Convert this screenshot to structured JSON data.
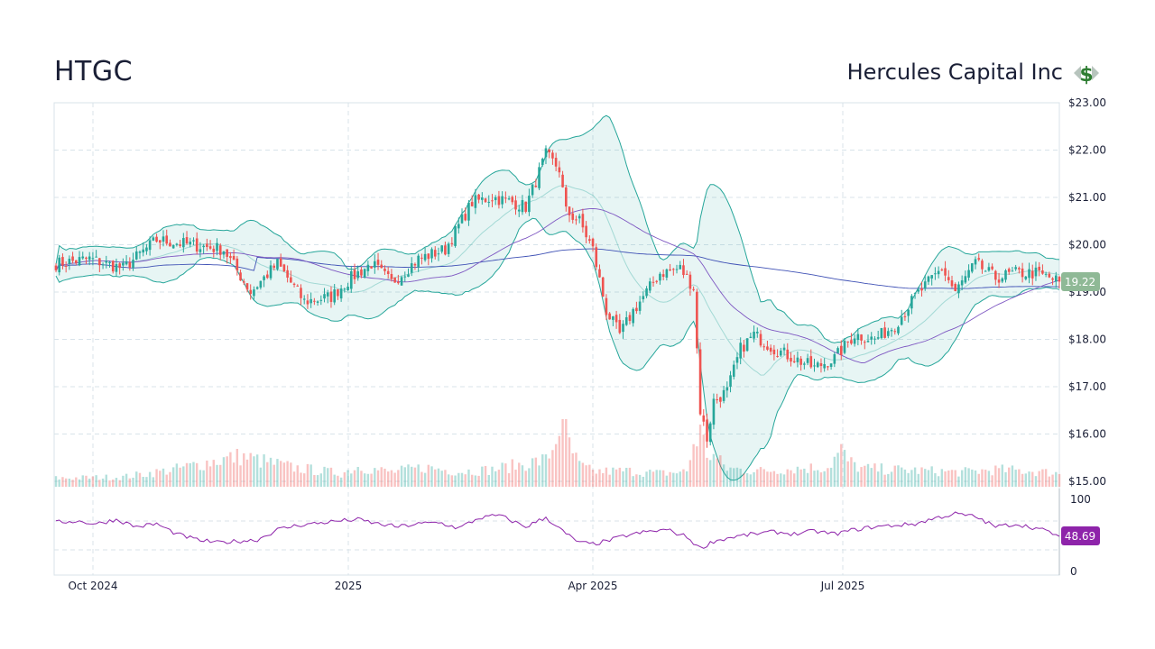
{
  "header": {
    "ticker": "HTGC",
    "company": "Hercules Capital Inc",
    "icon": "dollar-sign-icon"
  },
  "colors": {
    "up": "#26a69a",
    "down": "#ef5350",
    "bb": "#26a69a",
    "bbFill": "rgba(38,166,154,0.11)",
    "ma50": "#7e57c2",
    "ma200": "#3f51b5",
    "rsi": "#8e24aa",
    "grid": "#d8e3ea",
    "priceBadge": "#8fb996",
    "rsiBadge": "#8e24aa"
  },
  "chart_data": {
    "type": "candlestick",
    "price_axis": {
      "ticks": [
        "$23.00",
        "$22.00",
        "$21.00",
        "$20.00",
        "$19.00",
        "$18.00",
        "$17.00",
        "$16.00",
        "$15.00"
      ],
      "ylim": [
        15,
        23
      ]
    },
    "rsi_axis": {
      "ticks": [
        "100",
        "0"
      ],
      "ylim": [
        0,
        100
      ]
    },
    "x_ticks": [
      "Oct 2024",
      "2025",
      "Apr 2025",
      "Jul 2025"
    ],
    "last_price": "19.22",
    "last_rsi": "48.69",
    "price_path": [
      [
        0,
        19.6
      ],
      [
        10,
        19.7
      ],
      [
        20,
        19.5
      ],
      [
        30,
        20.1
      ],
      [
        40,
        20.0
      ],
      [
        50,
        19.9
      ],
      [
        58,
        19.0
      ],
      [
        66,
        19.6
      ],
      [
        74,
        18.8
      ],
      [
        82,
        18.9
      ],
      [
        88,
        19.3
      ],
      [
        94,
        19.6
      ],
      [
        100,
        19.2
      ],
      [
        108,
        19.7
      ],
      [
        116,
        19.9
      ],
      [
        124,
        20.9
      ],
      [
        130,
        21.0
      ],
      [
        136,
        20.9
      ],
      [
        140,
        20.8
      ],
      [
        146,
        21.9
      ],
      [
        150,
        21.6
      ],
      [
        152,
        20.7
      ],
      [
        156,
        20.5
      ],
      [
        160,
        19.9
      ],
      [
        164,
        18.6
      ],
      [
        168,
        18.1
      ],
      [
        172,
        18.6
      ],
      [
        176,
        19.0
      ],
      [
        180,
        19.4
      ],
      [
        186,
        19.5
      ],
      [
        190,
        19.1
      ],
      [
        192,
        16.5
      ],
      [
        194,
        15.9
      ],
      [
        196,
        16.7
      ],
      [
        200,
        16.9
      ],
      [
        204,
        17.8
      ],
      [
        208,
        18.1
      ],
      [
        214,
        17.8
      ],
      [
        220,
        17.6
      ],
      [
        226,
        17.4
      ],
      [
        232,
        17.6
      ],
      [
        238,
        18.1
      ],
      [
        244,
        18.0
      ],
      [
        250,
        18.3
      ],
      [
        256,
        18.9
      ],
      [
        260,
        19.2
      ],
      [
        264,
        19.5
      ],
      [
        268,
        19.0
      ],
      [
        274,
        19.6
      ],
      [
        280,
        19.3
      ],
      [
        286,
        19.4
      ],
      [
        292,
        19.4
      ],
      [
        296,
        19.3
      ],
      [
        299,
        19.22
      ]
    ],
    "rsi_path": [
      [
        0,
        68
      ],
      [
        6,
        70
      ],
      [
        12,
        66
      ],
      [
        18,
        72
      ],
      [
        24,
        62
      ],
      [
        30,
        66
      ],
      [
        36,
        52
      ],
      [
        42,
        44
      ],
      [
        48,
        40
      ],
      [
        54,
        42
      ],
      [
        60,
        44
      ],
      [
        66,
        58
      ],
      [
        72,
        64
      ],
      [
        78,
        67
      ],
      [
        84,
        70
      ],
      [
        90,
        72
      ],
      [
        96,
        66
      ],
      [
        102,
        62
      ],
      [
        108,
        66
      ],
      [
        114,
        68
      ],
      [
        120,
        60
      ],
      [
        126,
        74
      ],
      [
        132,
        78
      ],
      [
        136,
        70
      ],
      [
        140,
        62
      ],
      [
        146,
        75
      ],
      [
        152,
        52
      ],
      [
        156,
        40
      ],
      [
        160,
        38
      ],
      [
        164,
        42
      ],
      [
        170,
        50
      ],
      [
        176,
        55
      ],
      [
        182,
        58
      ],
      [
        188,
        48
      ],
      [
        192,
        32
      ],
      [
        196,
        42
      ],
      [
        202,
        48
      ],
      [
        208,
        52
      ],
      [
        214,
        55
      ],
      [
        220,
        52
      ],
      [
        226,
        56
      ],
      [
        232,
        52
      ],
      [
        238,
        58
      ],
      [
        244,
        62
      ],
      [
        250,
        64
      ],
      [
        256,
        66
      ],
      [
        262,
        74
      ],
      [
        268,
        80
      ],
      [
        274,
        76
      ],
      [
        280,
        62
      ],
      [
        286,
        66
      ],
      [
        292,
        60
      ],
      [
        296,
        55
      ],
      [
        299,
        48.69
      ]
    ],
    "volume_profile": [
      [
        0,
        0.14
      ],
      [
        20,
        0.16
      ],
      [
        35,
        0.28
      ],
      [
        45,
        0.4
      ],
      [
        55,
        0.5
      ],
      [
        70,
        0.32
      ],
      [
        85,
        0.22
      ],
      [
        90,
        0.33
      ],
      [
        100,
        0.24
      ],
      [
        110,
        0.32
      ],
      [
        120,
        0.25
      ],
      [
        130,
        0.28
      ],
      [
        140,
        0.38
      ],
      [
        146,
        0.44
      ],
      [
        148,
        0.62
      ],
      [
        150,
        1.0
      ],
      [
        152,
        0.9
      ],
      [
        154,
        0.55
      ],
      [
        156,
        0.35
      ],
      [
        160,
        0.25
      ],
      [
        170,
        0.26
      ],
      [
        180,
        0.22
      ],
      [
        188,
        0.25
      ],
      [
        190,
        0.7
      ],
      [
        192,
        0.9
      ],
      [
        194,
        0.55
      ],
      [
        196,
        0.5
      ],
      [
        200,
        0.3
      ],
      [
        210,
        0.26
      ],
      [
        220,
        0.3
      ],
      [
        230,
        0.32
      ],
      [
        234,
        0.6
      ],
      [
        236,
        0.42
      ],
      [
        240,
        0.3
      ],
      [
        250,
        0.28
      ],
      [
        260,
        0.26
      ],
      [
        270,
        0.24
      ],
      [
        280,
        0.28
      ],
      [
        290,
        0.26
      ],
      [
        299,
        0.22
      ]
    ]
  }
}
